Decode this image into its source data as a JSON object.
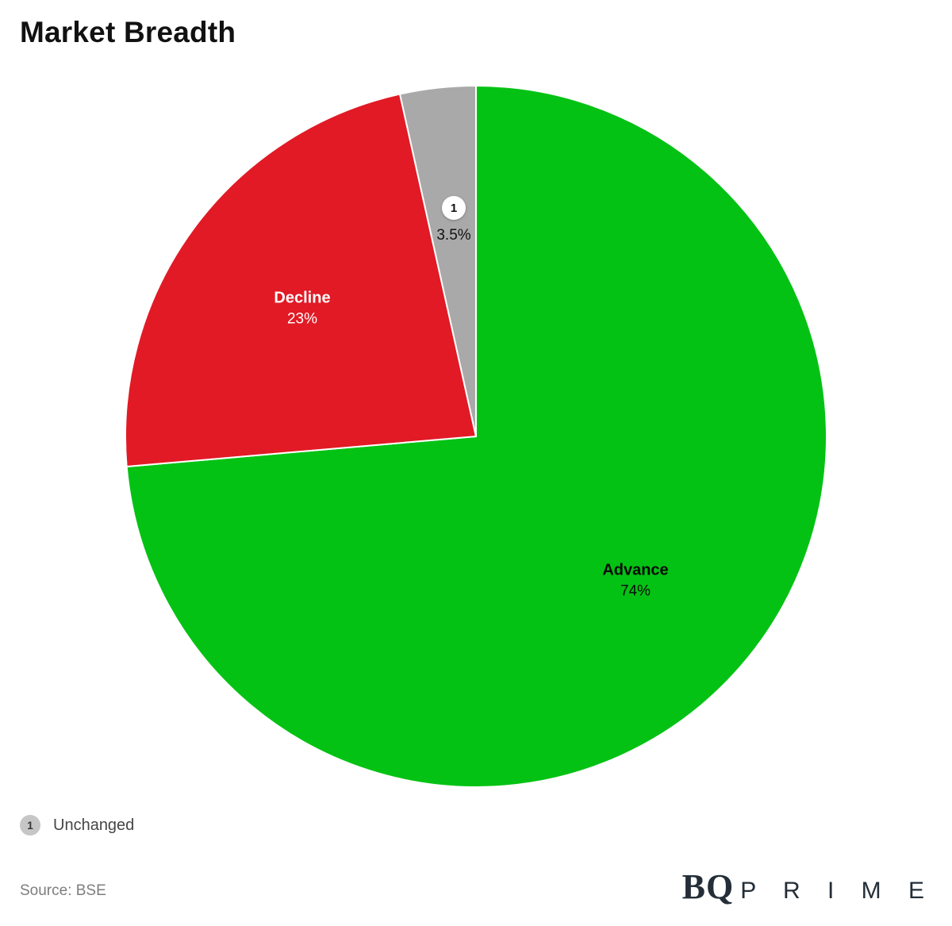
{
  "title": "Market Breadth",
  "source": "Source: BSE",
  "brand": {
    "serif_part": "BQ",
    "spaced_part": "P R I M E"
  },
  "legend": {
    "marker": "1",
    "label": "Unchanged"
  },
  "chart_data": {
    "type": "pie",
    "title": "Market Breadth",
    "direction": "clockwise",
    "start_angle_deg_from_top": 0,
    "legend_position": "bottom-left",
    "slices": [
      {
        "name": "Advance",
        "label": "Advance",
        "pct_label": "74%",
        "value": 74,
        "color": "#04c214",
        "label_color": "#0a0a0a"
      },
      {
        "name": "Decline",
        "label": "Decline",
        "pct_label": "23%",
        "value": 23,
        "color": "#e11a25",
        "label_color": "#ffffff"
      },
      {
        "name": "Unchanged",
        "label": "1",
        "pct_label": "3.5%",
        "value": 3.5,
        "color": "#a9a9a9",
        "label_color": "#111111"
      }
    ]
  }
}
